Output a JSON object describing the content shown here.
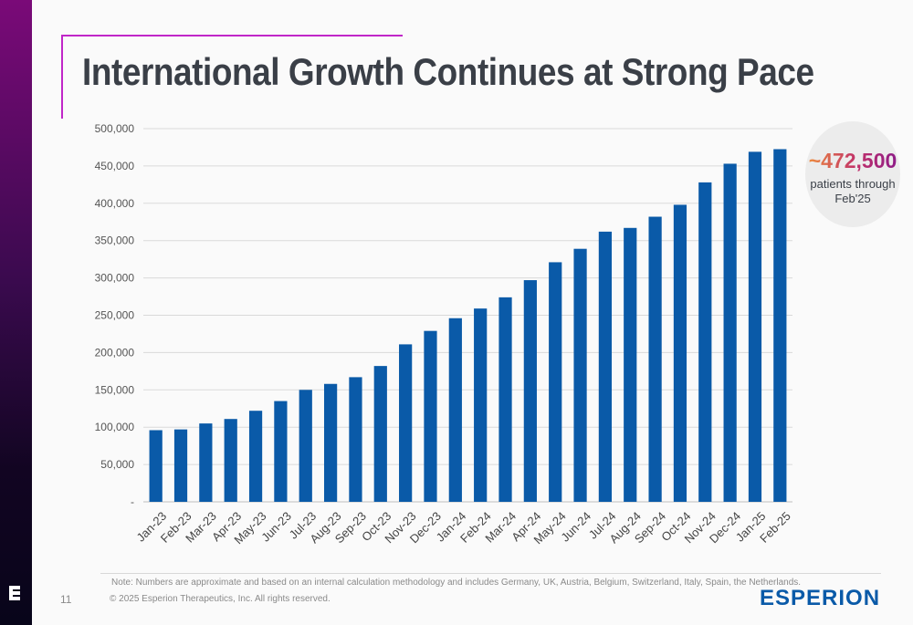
{
  "title": "International Growth Continues at Strong Pace",
  "callout": {
    "value": "~472,500",
    "text": "patients through Feb'25"
  },
  "footer": {
    "note": "Note: Numbers are approximate and based on an internal calculation methodology and includes Germany, UK, Austria, Belgium, Switzerland, Italy, Spain, the Netherlands.",
    "copyright": "© 2025 Esperion Therapeutics, Inc. All rights reserved.",
    "page_number": "11",
    "brand": "ESPERION"
  },
  "sidebar_logo_icon": "esperion-e-mark-icon",
  "colors": {
    "bar": "#0a5aa8",
    "accent": "#c026c8",
    "title": "#3a3f47"
  },
  "chart_data": {
    "type": "bar",
    "title": "",
    "xlabel": "",
    "ylabel": "",
    "ylim": [
      0,
      500000
    ],
    "yticks": [
      0,
      50000,
      100000,
      150000,
      200000,
      250000,
      300000,
      350000,
      400000,
      450000,
      500000
    ],
    "ytick_labels": [
      "-",
      "50,000",
      "100,000",
      "150,000",
      "200,000",
      "250,000",
      "300,000",
      "350,000",
      "400,000",
      "450,000",
      "500,000"
    ],
    "grid": true,
    "categories": [
      "Jan-23",
      "Feb-23",
      "Mar-23",
      "Apr-23",
      "May-23",
      "Jun-23",
      "Jul-23",
      "Aug-23",
      "Sep-23",
      "Oct-23",
      "Nov-23",
      "Dec-23",
      "Jan-24",
      "Feb-24",
      "Mar-24",
      "Apr-24",
      "May-24",
      "Jun-24",
      "Jul-24",
      "Aug-24",
      "Sep-24",
      "Oct-24",
      "Nov-24",
      "Dec-24",
      "Jan-25",
      "Feb-25"
    ],
    "values": [
      96000,
      97000,
      105000,
      111000,
      122000,
      135000,
      150000,
      158000,
      167000,
      182000,
      211000,
      229000,
      246000,
      259000,
      274000,
      297000,
      321000,
      339000,
      362000,
      367000,
      382000,
      398000,
      428000,
      453000,
      469000,
      472500
    ]
  }
}
